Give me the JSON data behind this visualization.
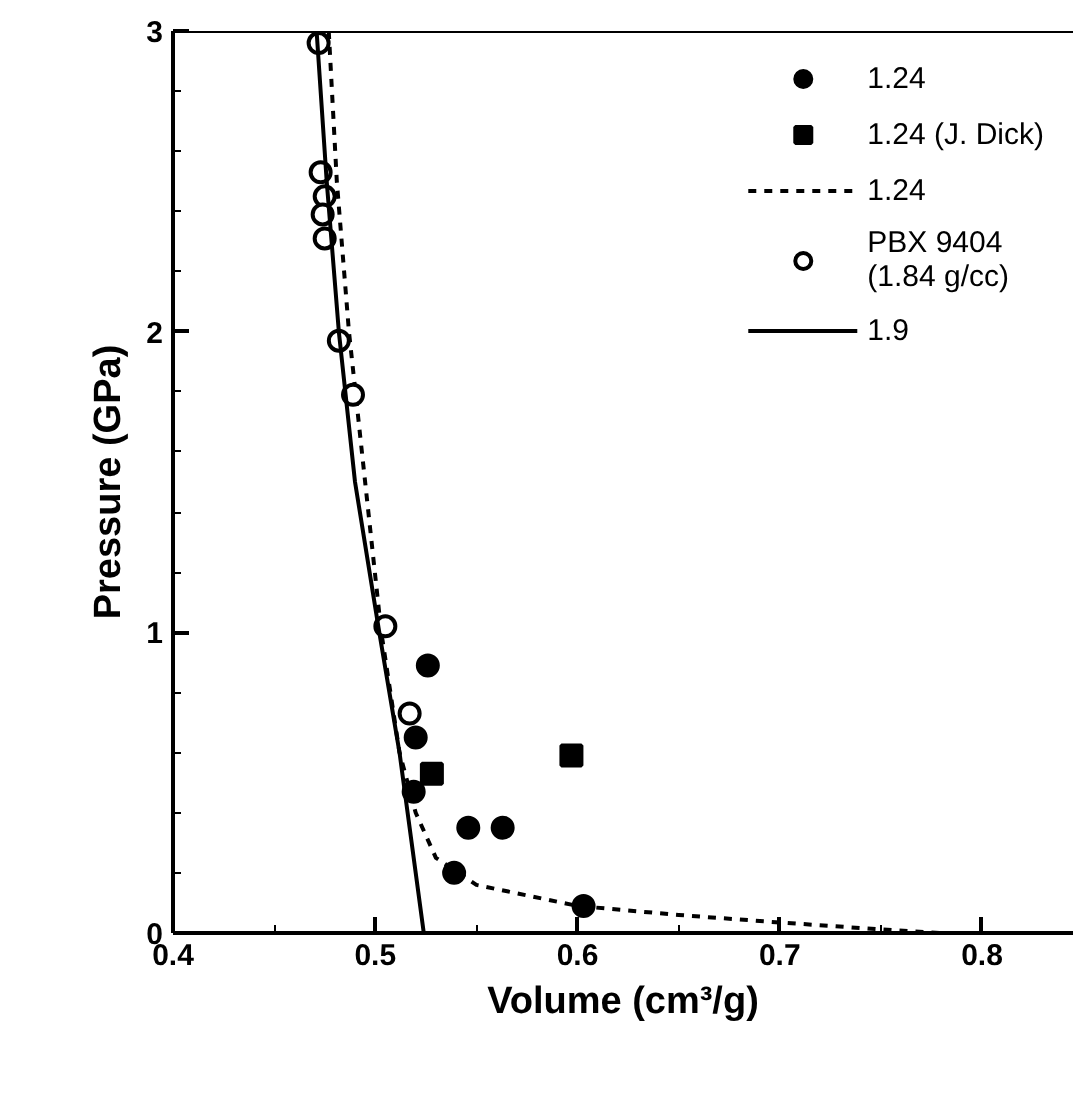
{
  "chart_data": {
    "type": "scatter",
    "xlabel": "Volume (cm³/g)",
    "ylabel": "Pressure (GPa)",
    "xlim": [
      0.4,
      0.845
    ],
    "ylim": [
      0,
      3
    ],
    "xticks": [
      0.4,
      0.5,
      0.6,
      0.7,
      0.8
    ],
    "yticks": [
      0,
      1,
      2,
      3
    ],
    "legend": "top right",
    "grid": false,
    "series": [
      {
        "name": "1.24",
        "marker": "circle",
        "color": "#000000",
        "x": [
          0.526,
          0.52,
          0.519,
          0.546,
          0.563,
          0.539,
          0.603
        ],
        "values": [
          0.89,
          0.65,
          0.47,
          0.35,
          0.35,
          0.2,
          0.09
        ]
      },
      {
        "name": "1.24 (J. Dick)",
        "marker": "square",
        "color": "#000000",
        "x": [
          0.528,
          0.597
        ],
        "values": [
          0.53,
          0.59
        ]
      },
      {
        "name": "1.24",
        "type": "line",
        "line_style": "dashed",
        "color": "#000000",
        "x": [
          0.477,
          0.481,
          0.487,
          0.495,
          0.503,
          0.512,
          0.52,
          0.53,
          0.55,
          0.6,
          0.65,
          0.7,
          0.75,
          0.78
        ],
        "values": [
          3,
          2.5,
          2,
          1.5,
          1.0,
          0.6,
          0.4,
          0.25,
          0.16,
          0.09,
          0.06,
          0.035,
          0.012,
          0
        ]
      },
      {
        "name": "PBX 9404\n(1.84 g/cc)",
        "marker": "circle_open",
        "color": "#000000",
        "x": [
          0.472,
          0.473,
          0.475,
          0.474,
          0.475,
          0.482,
          0.489,
          0.505,
          0.517
        ],
        "values": [
          2.96,
          2.53,
          2.45,
          2.39,
          2.31,
          1.97,
          1.79,
          1.02,
          0.73
        ]
      },
      {
        "name": "1.9",
        "type": "line",
        "line_style": "solid",
        "color": "#000000",
        "x": [
          0.471,
          0.476,
          0.482,
          0.49,
          0.502,
          0.512,
          0.518,
          0.524
        ],
        "values": [
          3,
          2.5,
          2.0,
          1.5,
          1.0,
          0.6,
          0.3,
          0
        ]
      }
    ]
  }
}
